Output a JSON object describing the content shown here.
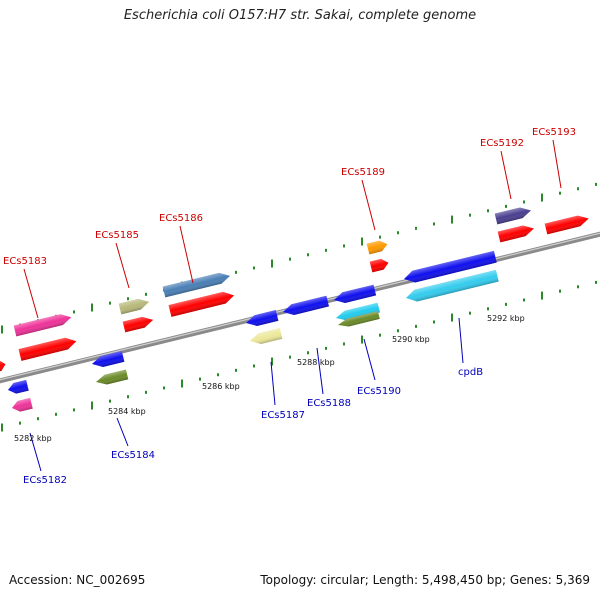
{
  "title": "Escherichia coli O157:H7 str. Sakai, complete genome",
  "footer": {
    "accession": "Accession: NC_002695",
    "summary": "Topology: circular; Length: 5,498,450 bp; Genes: 5,369"
  },
  "scale_labels": [
    "5282 kbp",
    "5284 kbp",
    "5286 kbp",
    "5288 kbp",
    "5290 kbp",
    "5292 kbp"
  ],
  "gene_labels_forward": [
    "ECs5183",
    "ECs5185",
    "ECs5186",
    "ECs5189",
    "ECs5192",
    "ECs5193"
  ],
  "gene_labels_reverse": [
    "ECs5182",
    "ECs5184",
    "ECs5187",
    "ECs5188",
    "ECs5190",
    "cpdB"
  ],
  "colors": {
    "backbone": "#8c8c8c",
    "tick": "#2a8a2a",
    "forward_label": "#cc0000",
    "reverse_label": "#0000bb",
    "red": "#ff0000",
    "blue": "#1010ee",
    "magenta": "#ee3399",
    "olive": "#b8b87a",
    "steelblue": "#4a7fb5",
    "orange": "#ff9900",
    "darkpurple": "#4a3f8f",
    "cyan": "#22ccee",
    "green": "#6a8a28",
    "khaki": "#ece89a",
    "lightblue": "#33ccee"
  }
}
